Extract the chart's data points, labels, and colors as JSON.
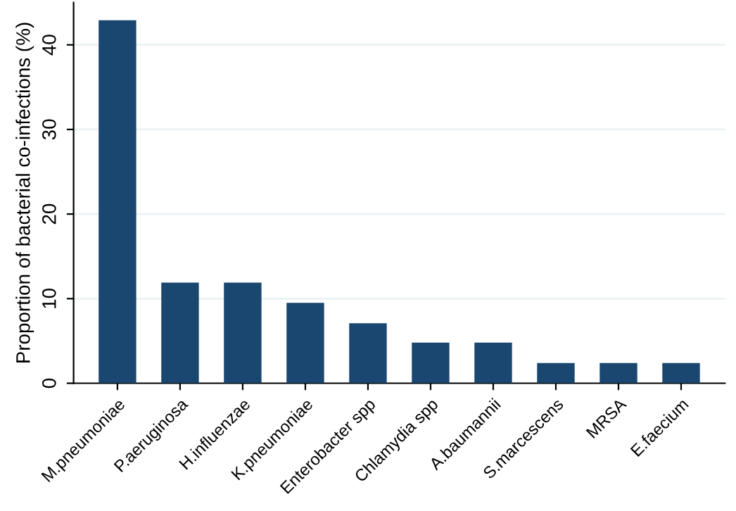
{
  "chart_data": {
    "type": "bar",
    "ylabel": "Proportion of bacterial co-infections (%)",
    "categories": [
      "M.pneumoniae",
      "P.aeruginosa",
      "H.influenzae",
      "K.pneumoniae",
      "Enterobacter spp",
      "Chlamydia spp",
      "A.baumannii",
      "S.marcescens",
      "MRSA",
      "E.faecium"
    ],
    "values": [
      42.9,
      11.9,
      11.9,
      9.5,
      7.1,
      4.8,
      4.8,
      2.4,
      2.4,
      2.4
    ],
    "color": "#1a476f",
    "ylim": [
      0,
      45
    ],
    "yticks": [
      0,
      10,
      20,
      30,
      40
    ],
    "grid": "y",
    "legend": false
  }
}
